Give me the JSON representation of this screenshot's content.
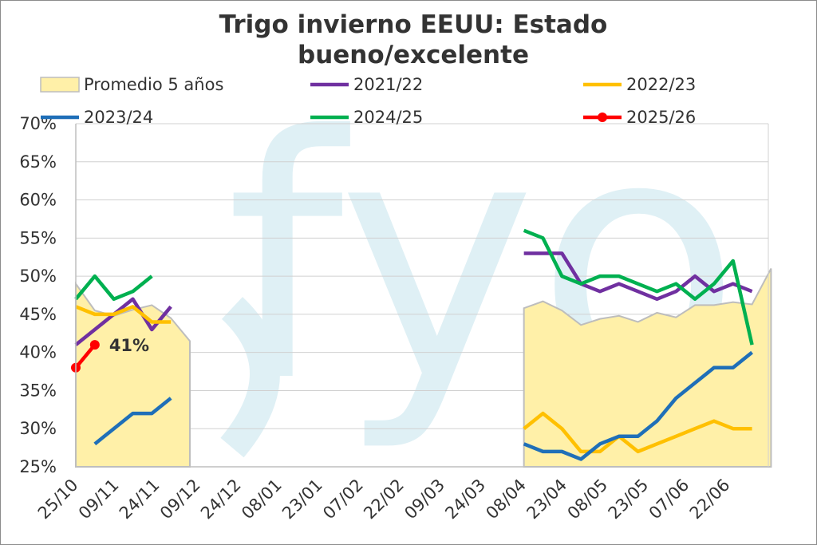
{
  "chart_data": {
    "type": "line",
    "title": "Trigo invierno EEUU: Estado bueno/excelente",
    "title_lines": [
      "Trigo invierno EEUU: Estado",
      "bueno/excelente"
    ],
    "xlabel": "",
    "ylabel": "",
    "ylim": [
      0.25,
      0.7
    ],
    "yticks": [
      "70%",
      "65%",
      "60%",
      "55%",
      "50%",
      "45%",
      "40%",
      "35%",
      "30%",
      "25%"
    ],
    "x_tick_labels": [
      "25/10",
      "09/11",
      "24/11",
      "09/12",
      "24/12",
      "08/01",
      "23/01",
      "07/02",
      "22/02",
      "09/03",
      "24/03",
      "08/04",
      "23/04",
      "08/05",
      "23/05",
      "07/06",
      "22/06"
    ],
    "legend_position": "top",
    "grid": "horizontal",
    "series": [
      {
        "name": "Promedio 5 años",
        "kind": "area",
        "color": "#fff0a8",
        "segments": [
          {
            "days": [
              0,
              7,
              14,
              21,
              28,
              35,
              42
            ],
            "values": [
              0.49,
              0.455,
              0.448,
              0.456,
              0.462,
              0.445,
              0.415
            ]
          },
          {
            "days": [
              165,
              172,
              179,
              186,
              193,
              200,
              207,
              214,
              221,
              228,
              235,
              242,
              249,
              256
            ],
            "values": [
              0.458,
              0.467,
              0.455,
              0.436,
              0.444,
              0.448,
              0.44,
              0.452,
              0.446,
              0.462,
              0.462,
              0.466,
              0.463,
              0.51
            ]
          }
        ]
      },
      {
        "name": "2021/22",
        "color": "#7030a0",
        "segments": [
          {
            "days": [
              0,
              7,
              14,
              21,
              28,
              35
            ],
            "values": [
              0.41,
              0.43,
              0.45,
              0.47,
              0.43,
              0.46
            ]
          },
          {
            "days": [
              165,
              172,
              179,
              186,
              193,
              200,
              207,
              214,
              221,
              228,
              235,
              242,
              249
            ],
            "values": [
              0.53,
              0.53,
              0.53,
              0.49,
              0.48,
              0.49,
              0.48,
              0.47,
              0.48,
              0.5,
              0.48,
              0.49,
              0.48
            ]
          }
        ]
      },
      {
        "name": "2022/23",
        "color": "#ffc000",
        "segments": [
          {
            "days": [
              0,
              7,
              14,
              21,
              28,
              35
            ],
            "values": [
              0.46,
              0.45,
              0.45,
              0.46,
              0.44,
              0.44
            ]
          },
          {
            "days": [
              165,
              172,
              179,
              186,
              193,
              200,
              207,
              214,
              221,
              228,
              235,
              242,
              249
            ],
            "values": [
              0.3,
              0.32,
              0.3,
              0.27,
              0.27,
              0.29,
              0.27,
              0.28,
              0.29,
              0.3,
              0.31,
              0.3,
              0.3
            ]
          }
        ]
      },
      {
        "name": "2023/24",
        "color": "#1f6fb8",
        "segments": [
          {
            "days": [
              7,
              14,
              21,
              28,
              35
            ],
            "values": [
              0.28,
              0.3,
              0.32,
              0.32,
              0.34
            ]
          },
          {
            "days": [
              165,
              172,
              179,
              186,
              193,
              200,
              207,
              214,
              221,
              228,
              235,
              242,
              249
            ],
            "values": [
              0.28,
              0.27,
              0.27,
              0.26,
              0.28,
              0.29,
              0.29,
              0.31,
              0.34,
              0.36,
              0.38,
              0.38,
              0.4
            ]
          }
        ]
      },
      {
        "name": "2024/25",
        "color": "#00b050",
        "segments": [
          {
            "days": [
              0,
              7,
              14,
              21,
              28
            ],
            "values": [
              0.47,
              0.5,
              0.47,
              0.48,
              0.5
            ]
          },
          {
            "days": [
              165,
              172,
              179,
              186,
              193,
              200,
              207,
              214,
              221,
              228,
              235,
              242,
              249
            ],
            "values": [
              0.56,
              0.55,
              0.5,
              0.49,
              0.5,
              0.5,
              0.49,
              0.48,
              0.49,
              0.47,
              0.49,
              0.52,
              0.41
            ]
          }
        ]
      },
      {
        "name": "2025/26",
        "color": "#ff0000",
        "markers": true,
        "segments": [
          {
            "days": [
              0,
              7
            ],
            "values": [
              0.38,
              0.41
            ]
          }
        ]
      }
    ],
    "annotations": [
      {
        "text": "41%",
        "series": "2025/26",
        "day": 7,
        "value": 0.41
      }
    ]
  },
  "watermark": "fyo",
  "colors": {
    "grid": "#d0d0d0",
    "axis": "#bfbfbf",
    "text": "#333333",
    "watermark": "#dff0f5"
  }
}
